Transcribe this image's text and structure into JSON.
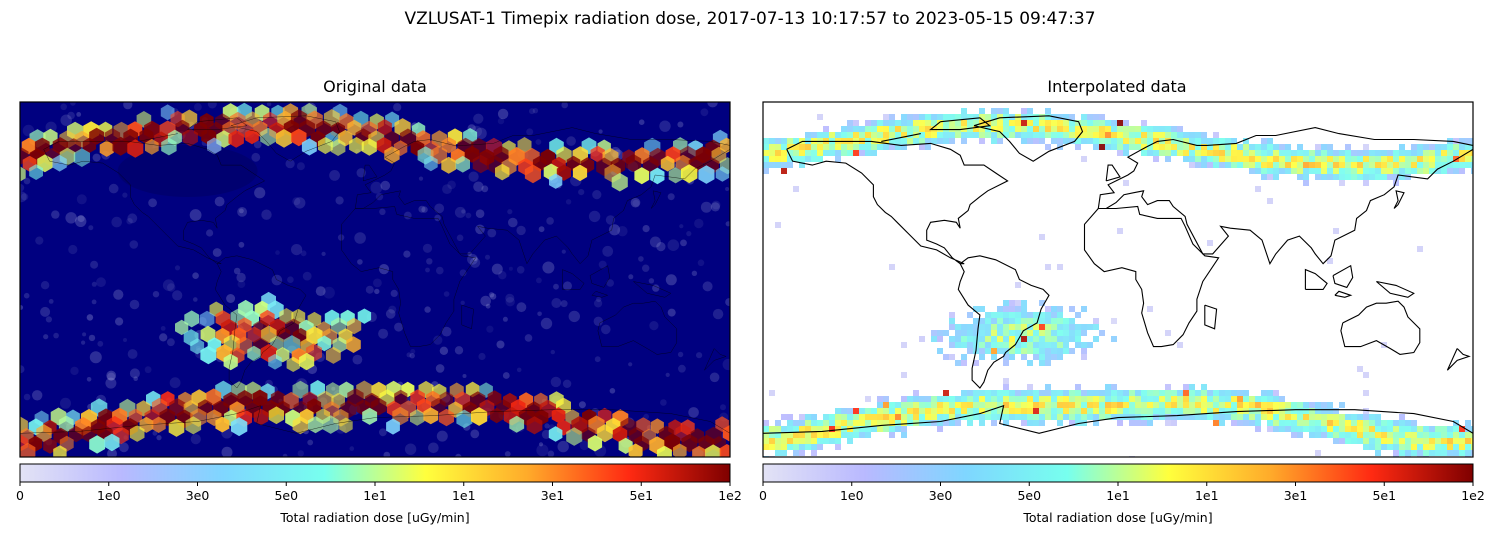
{
  "figure": {
    "title": "VZLUSAT-1 Timepix radiation dose, 2017-07-13 10:17:57 to 2023-05-15 09:47:37"
  },
  "colors": {
    "colormap": [
      "#e3e3f5",
      "#b9b9ff",
      "#7fd6ff",
      "#77ffee",
      "#ffff3d",
      "#ffab2a",
      "#ff2a12",
      "#7f0000"
    ],
    "ocean_background": "#000080",
    "coastline": "#000000"
  },
  "chart_data": [
    {
      "type": "heatmap",
      "title": "Original data",
      "subtype": "hexbin map of satellite measurements",
      "extent": {
        "lon": [
          -180,
          180
        ],
        "lat": [
          -90,
          90
        ]
      },
      "high_dose_regions": [
        "northern auroral belt",
        "southern auroral belt",
        "South Atlantic Anomaly"
      ],
      "colorbar": {
        "label": "Total radiation dose [uGy/min]",
        "tick_labels": [
          "0",
          "1e0",
          "3e0",
          "5e0",
          "1e1",
          "1e1",
          "3e1",
          "5e1",
          "1e2"
        ]
      }
    },
    {
      "type": "heatmap",
      "title": "Interpolated data",
      "subtype": "interpolated grid over world coastline map",
      "extent": {
        "lon": [
          -180,
          180
        ],
        "lat": [
          -90,
          90
        ]
      },
      "high_dose_regions": [
        "northern auroral belt",
        "southern auroral belt",
        "South Atlantic Anomaly"
      ],
      "colorbar": {
        "label": "Total radiation dose [uGy/min]",
        "tick_labels": [
          "0",
          "1e0",
          "3e0",
          "5e0",
          "1e1",
          "1e1",
          "3e1",
          "5e1",
          "1e2"
        ]
      }
    }
  ]
}
